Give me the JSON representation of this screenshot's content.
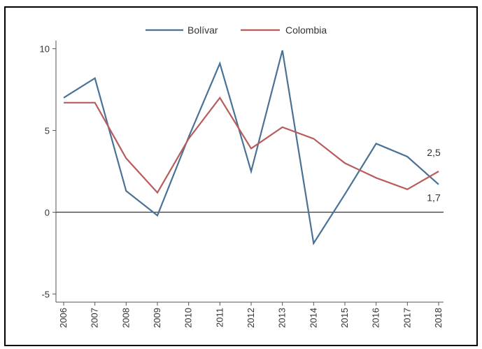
{
  "chart_data": {
    "type": "line",
    "title": "",
    "xlabel": "",
    "ylabel": "",
    "x": [
      "2006",
      "2007",
      "2008",
      "2009",
      "2010",
      "2011",
      "2012",
      "2013",
      "2014",
      "2015",
      "2016",
      "2017",
      "2018"
    ],
    "ylim": [
      -5.5,
      10.5
    ],
    "y_ticks": [
      "10",
      "5",
      "0",
      "-5"
    ],
    "series": [
      {
        "name": "Bolívar",
        "color": "#4a7296",
        "values": [
          7.0,
          8.2,
          1.3,
          -0.2,
          4.6,
          9.1,
          2.5,
          9.9,
          -1.9,
          1.1,
          4.2,
          3.4,
          1.7
        ]
      },
      {
        "name": "Colombia",
        "color": "#b85c5c",
        "values": [
          6.7,
          6.7,
          3.3,
          1.2,
          4.5,
          7.0,
          3.9,
          5.2,
          4.5,
          3.0,
          2.1,
          1.4,
          2.5
        ]
      }
    ],
    "annotations": [
      {
        "text": "2,5",
        "series": "Colombia",
        "x": "2018"
      },
      {
        "text": "1,7",
        "series": "Bolívar",
        "x": "2018"
      }
    ],
    "zero_line": true,
    "grid": false,
    "legend_position": "top-center"
  }
}
